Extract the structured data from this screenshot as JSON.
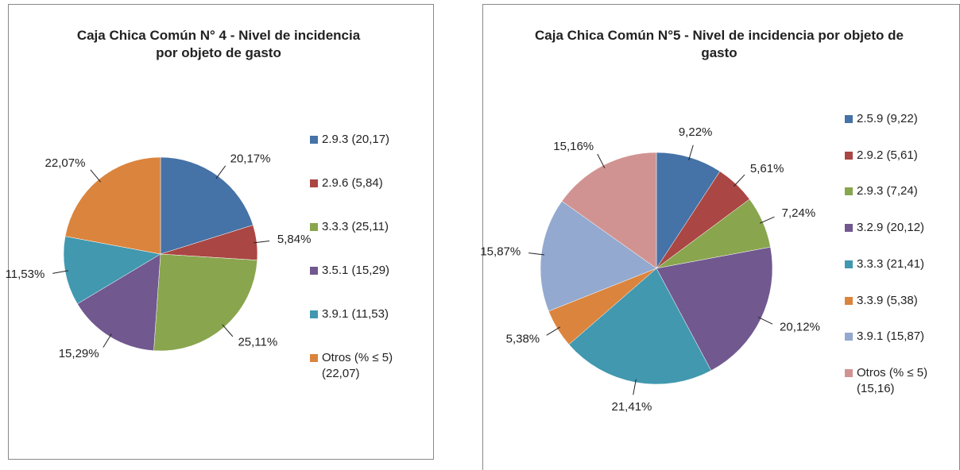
{
  "chart_data": [
    {
      "type": "pie",
      "title": "Caja Chica Común N° 4 - Nivel de incidencia por objeto de gasto",
      "categories": [
        "2.9.3 (20,17)",
        "2.9.6 (5,84)",
        "3.3.3 (25,11)",
        "3.5.1 (15,29)",
        "3.9.1 (11,53)",
        "Otros (% ≤ 5) (22,07)"
      ],
      "values": [
        20.17,
        5.84,
        25.11,
        15.29,
        11.53,
        22.07
      ],
      "value_labels": [
        "20,17%",
        "5,84%",
        "25,11%",
        "15,29%",
        "11,53%",
        "22,07%"
      ],
      "colors": [
        "#4572a7",
        "#aa4643",
        "#89a54e",
        "#71588f",
        "#4198af",
        "#db843d"
      ]
    },
    {
      "type": "pie",
      "title": "Caja  Chica Común N°5 - Nivel de incidencia por objeto de gasto",
      "categories": [
        "2.5.9 (9,22)",
        "2.9.2 (5,61)",
        "2.9.3 (7,24)",
        "3.2.9 (20,12)",
        "3.3.3 (21,41)",
        "3.3.9 (5,38)",
        "3.9.1 (15,87)",
        "Otros (% ≤ 5) (15,16)"
      ],
      "values": [
        9.22,
        5.61,
        7.24,
        20.12,
        21.41,
        5.38,
        15.87,
        15.16
      ],
      "value_labels": [
        "9,22%",
        "5,61%",
        "7,24%",
        "20,12%",
        "21,41%",
        "5,38%",
        "15,87%",
        "15,16%"
      ],
      "colors": [
        "#4572a7",
        "#aa4643",
        "#89a54e",
        "#71588f",
        "#4198af",
        "#db843d",
        "#93a9cf",
        "#d19392"
      ]
    }
  ]
}
